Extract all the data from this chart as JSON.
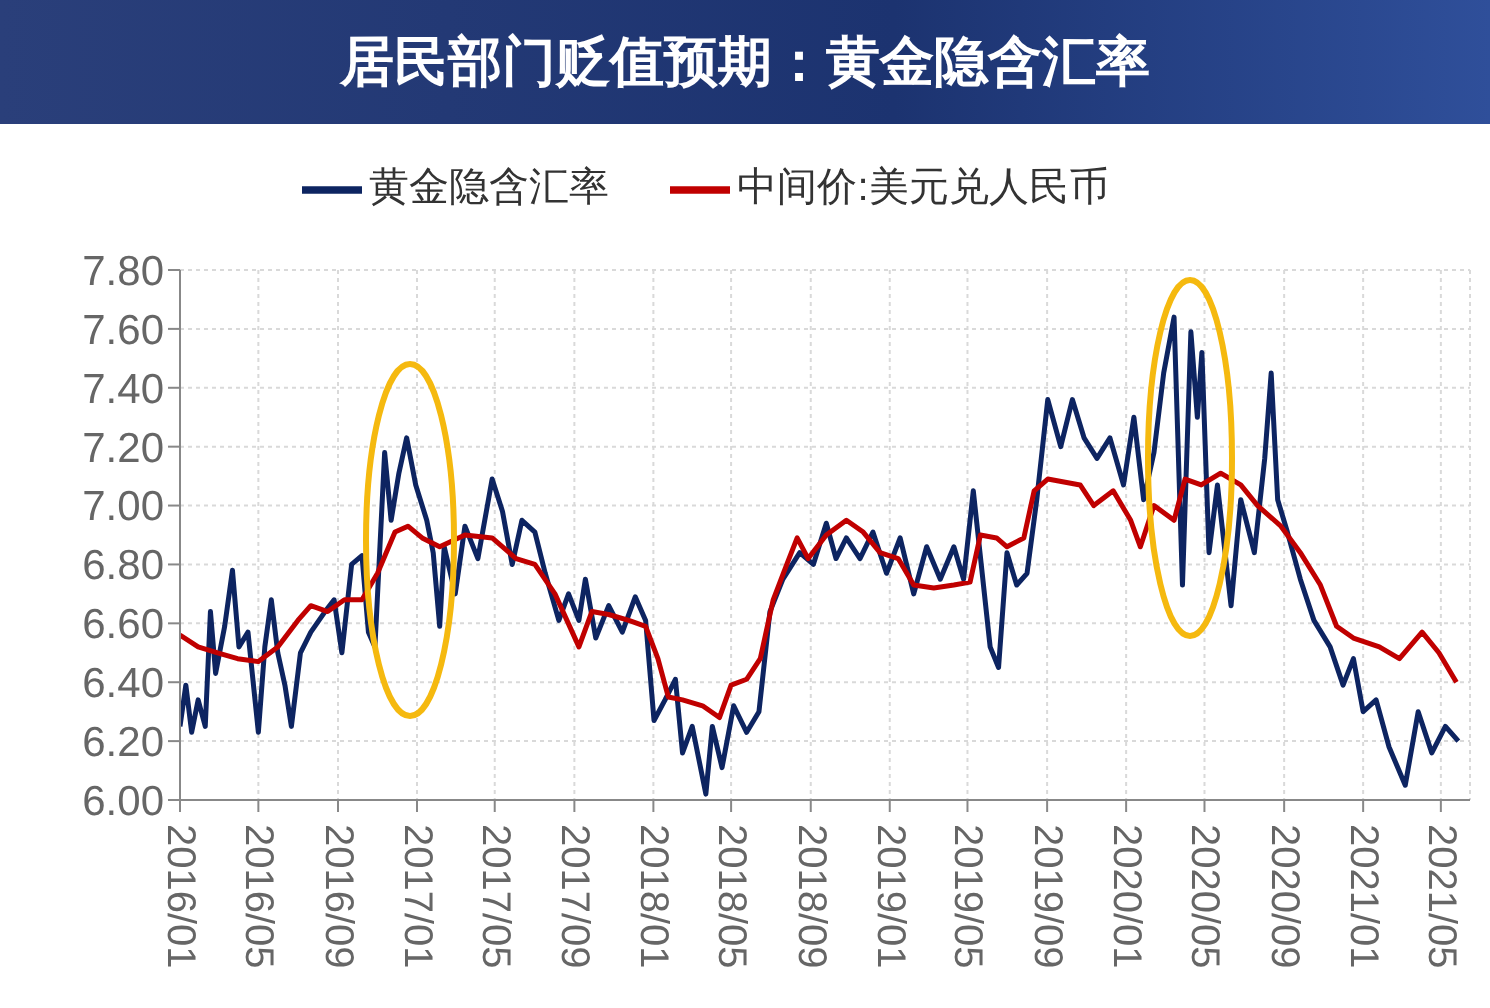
{
  "chart_data": {
    "type": "line",
    "title": "居民部门贬值预期：黄金隐含汇率",
    "legend": "top",
    "grid": true,
    "xlim": [
      "2016-01-01",
      "2021-06-15"
    ],
    "xticks": [
      {
        "value": "2016-01",
        "label": "2016/01"
      },
      {
        "value": "2016-05",
        "label": "2016/05"
      },
      {
        "value": "2016-09",
        "label": "2016/09"
      },
      {
        "value": "2017-01",
        "label": "2017/01"
      },
      {
        "value": "2017-05",
        "label": "2017/05"
      },
      {
        "value": "2017-09",
        "label": "2017/09"
      },
      {
        "value": "2018-01",
        "label": "2018/01"
      },
      {
        "value": "2018-05",
        "label": "2018/05"
      },
      {
        "value": "2018-09",
        "label": "2018/09"
      },
      {
        "value": "2019-01",
        "label": "2019/01"
      },
      {
        "value": "2019-05",
        "label": "2019/05"
      },
      {
        "value": "2019-09",
        "label": "2019/09"
      },
      {
        "value": "2020-01",
        "label": "2020/01"
      },
      {
        "value": "2020-05",
        "label": "2020/05"
      },
      {
        "value": "2020-09",
        "label": "2020/09"
      },
      {
        "value": "2021-01",
        "label": "2021/01"
      },
      {
        "value": "2021-05",
        "label": "2021/05"
      }
    ],
    "ylim": [
      6.0,
      7.8
    ],
    "yticks": [
      {
        "value": 6.0,
        "label": "6.00"
      },
      {
        "value": 6.2,
        "label": "6.20"
      },
      {
        "value": 6.4,
        "label": "6.40"
      },
      {
        "value": 6.6,
        "label": "6.60"
      },
      {
        "value": 6.8,
        "label": "6.80"
      },
      {
        "value": 7.0,
        "label": "7.00"
      },
      {
        "value": 7.2,
        "label": "7.20"
      },
      {
        "value": 7.4,
        "label": "7.40"
      },
      {
        "value": 7.6,
        "label": "7.60"
      },
      {
        "value": 7.8,
        "label": "7.80"
      }
    ],
    "series": [
      {
        "name": "黄金隐含汇率",
        "color": "#0d2461",
        "x": [
          "2016-01-01",
          "2016-01-10",
          "2016-01-19",
          "2016-01-29",
          "2016-02-09",
          "2016-02-17",
          "2016-02-25",
          "2016-03-10",
          "2016-03-22",
          "2016-04-01",
          "2016-04-15",
          "2016-05-01",
          "2016-05-11",
          "2016-05-21",
          "2016-05-31",
          "2016-06-11",
          "2016-06-21",
          "2016-07-05",
          "2016-07-21",
          "2016-08-12",
          "2016-08-26",
          "2016-09-07",
          "2016-09-22",
          "2016-10-08",
          "2016-10-18",
          "2016-10-28",
          "2016-11-12",
          "2016-11-22",
          "2016-12-04",
          "2016-12-16",
          "2016-12-30",
          "2017-01-16",
          "2017-01-26",
          "2017-02-05",
          "2017-02-12",
          "2017-03-01",
          "2017-03-16",
          "2017-04-05",
          "2017-04-27",
          "2017-05-13",
          "2017-05-28",
          "2017-06-12",
          "2017-07-02",
          "2017-07-18",
          "2017-08-08",
          "2017-08-23",
          "2017-09-08",
          "2017-09-18",
          "2017-10-04",
          "2017-10-24",
          "2017-11-14",
          "2017-12-04",
          "2017-12-20",
          "2018-01-02",
          "2018-01-19",
          "2018-02-04",
          "2018-02-15",
          "2018-03-02",
          "2018-03-23",
          "2018-04-02",
          "2018-04-17",
          "2018-05-05",
          "2018-05-25",
          "2018-06-13",
          "2018-06-30",
          "2018-07-20",
          "2018-08-15",
          "2018-09-05",
          "2018-09-25",
          "2018-10-10",
          "2018-10-26",
          "2018-11-16",
          "2018-12-06",
          "2018-12-27",
          "2019-01-17",
          "2019-02-07",
          "2019-02-27",
          "2019-03-20",
          "2019-04-10",
          "2019-04-25",
          "2019-05-10",
          "2019-06-05",
          "2019-06-18",
          "2019-07-01",
          "2019-07-16",
          "2019-08-01",
          "2019-08-16",
          "2019-09-02",
          "2019-09-22",
          "2019-10-10",
          "2019-10-28",
          "2019-11-17",
          "2019-12-07",
          "2019-12-28",
          "2020-01-13",
          "2020-01-28",
          "2020-02-13",
          "2020-02-28",
          "2020-03-15",
          "2020-03-28",
          "2020-04-10",
          "2020-04-20",
          "2020-04-27",
          "2020-05-08",
          "2020-05-21",
          "2020-06-11",
          "2020-06-26",
          "2020-07-17",
          "2020-08-02",
          "2020-08-12",
          "2020-08-22",
          "2020-09-06",
          "2020-09-26",
          "2020-10-17",
          "2020-11-11",
          "2020-12-01",
          "2020-12-17",
          "2021-01-01",
          "2021-01-21",
          "2021-02-10",
          "2021-03-07",
          "2021-03-27",
          "2021-04-17",
          "2021-05-08",
          "2021-05-28"
        ],
        "values": [
          6.25,
          6.39,
          6.23,
          6.34,
          6.25,
          6.64,
          6.43,
          6.59,
          6.78,
          6.52,
          6.57,
          6.23,
          6.52,
          6.68,
          6.5,
          6.39,
          6.25,
          6.5,
          6.57,
          6.64,
          6.68,
          6.5,
          6.8,
          6.83,
          6.57,
          6.52,
          7.18,
          6.95,
          7.11,
          7.23,
          7.07,
          6.95,
          6.84,
          6.59,
          6.86,
          6.7,
          6.93,
          6.82,
          7.09,
          6.98,
          6.8,
          6.95,
          6.91,
          6.77,
          6.61,
          6.7,
          6.61,
          6.75,
          6.55,
          6.66,
          6.57,
          6.69,
          6.61,
          6.27,
          6.34,
          6.41,
          6.16,
          6.25,
          6.02,
          6.25,
          6.11,
          6.32,
          6.23,
          6.3,
          6.64,
          6.75,
          6.84,
          6.8,
          6.94,
          6.82,
          6.89,
          6.82,
          6.91,
          6.77,
          6.89,
          6.7,
          6.86,
          6.75,
          6.86,
          6.75,
          7.05,
          6.52,
          6.45,
          6.84,
          6.73,
          6.77,
          7.02,
          7.36,
          7.2,
          7.36,
          7.23,
          7.16,
          7.23,
          7.07,
          7.3,
          7.02,
          7.18,
          7.45,
          7.64,
          6.73,
          7.59,
          7.3,
          7.52,
          6.84,
          7.07,
          6.66,
          7.02,
          6.84,
          7.16,
          7.45,
          7.02,
          6.91,
          6.75,
          6.61,
          6.52,
          6.39,
          6.48,
          6.3,
          6.34,
          6.18,
          6.05,
          6.3,
          6.16,
          6.25,
          6.2
        ]
      },
      {
        "name": "中间价:美元兑人民币",
        "color": "#c00000",
        "x": [
          "2016-01-01",
          "2016-01-29",
          "2016-02-28",
          "2016-03-30",
          "2016-05-01",
          "2016-05-31",
          "2016-07-01",
          "2016-07-21",
          "2016-08-16",
          "2016-09-11",
          "2016-10-08",
          "2016-11-01",
          "2016-11-28",
          "2016-12-18",
          "2017-01-09",
          "2017-02-05",
          "2017-03-16",
          "2017-04-27",
          "2017-06-03",
          "2017-07-02",
          "2017-08-02",
          "2017-09-08",
          "2017-09-28",
          "2017-10-24",
          "2017-11-24",
          "2017-12-20",
          "2018-01-08",
          "2018-01-24",
          "2018-02-15",
          "2018-03-18",
          "2018-04-13",
          "2018-05-01",
          "2018-05-25",
          "2018-06-15",
          "2018-07-05",
          "2018-07-26",
          "2018-08-11",
          "2018-08-28",
          "2018-09-25",
          "2018-10-26",
          "2018-11-21",
          "2018-12-17",
          "2019-01-14",
          "2019-02-07",
          "2019-03-10",
          "2019-04-10",
          "2019-05-05",
          "2019-05-21",
          "2019-06-15",
          "2019-07-01",
          "2019-07-27",
          "2019-08-12",
          "2019-09-02",
          "2019-10-22",
          "2019-11-12",
          "2019-12-12",
          "2020-01-08",
          "2020-01-23",
          "2020-02-13",
          "2020-03-15",
          "2020-04-01",
          "2020-04-26",
          "2020-05-26",
          "2020-06-26",
          "2020-07-22",
          "2020-08-27",
          "2020-09-26",
          "2020-10-27",
          "2020-11-21",
          "2020-12-17",
          "2021-01-26",
          "2021-02-26",
          "2021-04-02",
          "2021-04-28",
          "2021-05-25"
        ],
        "values": [
          6.56,
          6.52,
          6.5,
          6.48,
          6.47,
          6.52,
          6.61,
          6.66,
          6.64,
          6.68,
          6.68,
          6.77,
          6.91,
          6.93,
          6.89,
          6.86,
          6.9,
          6.89,
          6.82,
          6.8,
          6.7,
          6.52,
          6.64,
          6.63,
          6.61,
          6.59,
          6.48,
          6.35,
          6.34,
          6.32,
          6.28,
          6.39,
          6.41,
          6.48,
          6.68,
          6.8,
          6.89,
          6.82,
          6.9,
          6.95,
          6.91,
          6.84,
          6.82,
          6.73,
          6.72,
          6.73,
          6.74,
          6.9,
          6.89,
          6.86,
          6.89,
          7.05,
          7.09,
          7.07,
          7.0,
          7.05,
          6.95,
          6.86,
          7.0,
          6.95,
          7.09,
          7.07,
          7.11,
          7.07,
          7.0,
          6.93,
          6.84,
          6.73,
          6.59,
          6.55,
          6.52,
          6.48,
          6.57,
          6.5,
          6.4
        ]
      }
    ]
  }
}
